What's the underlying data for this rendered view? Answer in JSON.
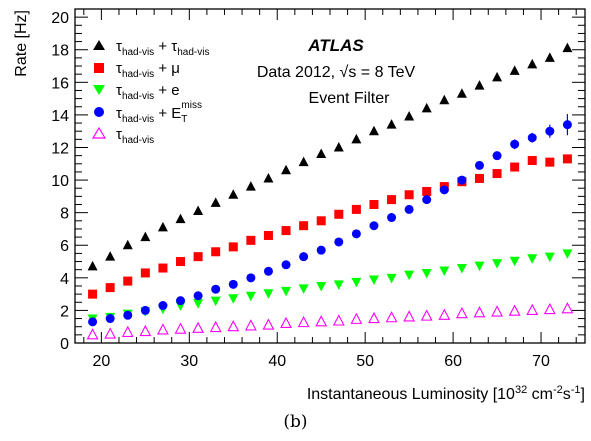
{
  "chart_data": {
    "type": "scatter",
    "title": "",
    "ylabel": "Rate [Hz]",
    "xlabel": "Instantaneous Luminosity [10^32 cm^-2 s^-1]",
    "xlim": [
      17.0,
      75.0
    ],
    "ylim": [
      0,
      20.5
    ],
    "x_ticks": [
      20,
      30,
      40,
      50,
      60,
      70
    ],
    "y_ticks": [
      0,
      2,
      4,
      6,
      8,
      10,
      12,
      14,
      16,
      18,
      20
    ],
    "grid": false,
    "legend_placement": "top-left",
    "annotations": {
      "experiment": "ATLAS",
      "dataset": "Data 2012, √s = 8 TeV",
      "trigger_level": "Event Filter"
    },
    "series": [
      {
        "name": "τhad-vis + τhad-vis",
        "marker": "triangle-filled",
        "color": "#000000",
        "x": [
          19,
          21,
          23,
          25,
          27,
          29,
          31,
          33,
          35,
          37,
          39,
          41,
          43,
          45,
          47,
          49,
          51,
          53,
          55,
          57,
          59,
          61,
          63,
          65,
          67,
          69,
          71,
          73
        ],
        "y": [
          4.7,
          5.3,
          6.0,
          6.5,
          7.1,
          7.6,
          8.1,
          8.6,
          9.1,
          9.6,
          10.1,
          10.6,
          11.1,
          11.6,
          12.0,
          12.5,
          13.0,
          13.4,
          13.9,
          14.4,
          14.9,
          15.3,
          15.8,
          16.3,
          16.7,
          17.1,
          17.5,
          18.1
        ]
      },
      {
        "name": "τhad-vis + μ",
        "marker": "square-filled",
        "color": "#ff0000",
        "x": [
          19,
          21,
          23,
          25,
          27,
          29,
          31,
          33,
          35,
          37,
          39,
          41,
          43,
          45,
          47,
          49,
          51,
          53,
          55,
          57,
          59,
          61,
          63,
          65,
          67,
          69,
          71,
          73
        ],
        "y": [
          3.0,
          3.4,
          3.8,
          4.3,
          4.6,
          5.0,
          5.3,
          5.6,
          5.9,
          6.3,
          6.6,
          6.9,
          7.2,
          7.5,
          7.9,
          8.2,
          8.5,
          8.8,
          9.1,
          9.3,
          9.6,
          9.9,
          10.1,
          10.4,
          10.8,
          11.2,
          11.1,
          11.3
        ]
      },
      {
        "name": "τhad-vis + e",
        "marker": "triangle-down-filled",
        "color": "#00ff00",
        "x": [
          19,
          21,
          23,
          25,
          27,
          29,
          31,
          33,
          35,
          37,
          39,
          41,
          43,
          45,
          47,
          49,
          51,
          53,
          55,
          57,
          59,
          61,
          63,
          65,
          67,
          69,
          71,
          73
        ],
        "y": [
          1.5,
          1.6,
          1.8,
          1.95,
          2.1,
          2.3,
          2.45,
          2.6,
          2.75,
          2.9,
          3.05,
          3.2,
          3.35,
          3.5,
          3.6,
          3.75,
          3.9,
          4.0,
          4.2,
          4.3,
          4.45,
          4.6,
          4.75,
          4.9,
          5.05,
          5.2,
          5.3,
          5.5
        ]
      },
      {
        "name": "τhad-vis + ETmiss",
        "marker": "circle-filled",
        "color": "#0000ff",
        "x": [
          19,
          21,
          23,
          25,
          27,
          29,
          31,
          33,
          35,
          37,
          39,
          41,
          43,
          45,
          47,
          49,
          51,
          53,
          55,
          57,
          59,
          61,
          63,
          65,
          67,
          69,
          71,
          73
        ],
        "y": [
          1.3,
          1.5,
          1.7,
          2.0,
          2.3,
          2.6,
          2.9,
          3.3,
          3.6,
          4.0,
          4.4,
          4.8,
          5.3,
          5.7,
          6.2,
          6.7,
          7.2,
          7.7,
          8.2,
          8.8,
          9.4,
          10.0,
          10.9,
          11.5,
          12.2,
          12.6,
          13.0,
          13.4
        ],
        "y_err": [
          0.1,
          0.1,
          0.1,
          0.1,
          0.1,
          0.1,
          0.1,
          0.1,
          0.1,
          0.1,
          0.1,
          0.1,
          0.1,
          0.1,
          0.1,
          0.1,
          0.1,
          0.15,
          0.15,
          0.15,
          0.2,
          0.2,
          0.2,
          0.25,
          0.3,
          0.3,
          0.4,
          0.65
        ]
      },
      {
        "name": "τhad-vis",
        "marker": "triangle-open",
        "color": "#ff00ff",
        "x": [
          19,
          21,
          23,
          25,
          27,
          29,
          31,
          33,
          35,
          37,
          39,
          41,
          43,
          45,
          47,
          49,
          51,
          53,
          55,
          57,
          59,
          61,
          63,
          65,
          67,
          69,
          71,
          73
        ],
        "y": [
          0.5,
          0.55,
          0.65,
          0.7,
          0.8,
          0.85,
          0.9,
          0.95,
          1.0,
          1.05,
          1.1,
          1.2,
          1.25,
          1.3,
          1.35,
          1.45,
          1.5,
          1.55,
          1.6,
          1.65,
          1.7,
          1.8,
          1.85,
          1.9,
          1.95,
          2.0,
          2.05,
          2.1
        ]
      }
    ]
  },
  "text": {
    "ylabel": "Rate [Hz]",
    "xlabel_main": "Instantaneous Luminosity [10",
    "xlabel_exp1": "32",
    "xlabel_mid": " cm",
    "xlabel_exp2": "-2",
    "xlabel_s": "s",
    "xlabel_exp3": "-1",
    "xlabel_end": "]",
    "atlas": "ATLAS",
    "dataset_prefix": "Data 2012,",
    "sqrt_s": "√s = 8 TeV",
    "trigger": "Event Filter",
    "caption": "(b)",
    "legend": {
      "tau": "τ",
      "sub": "had-vis",
      "plus_tau": " + τ",
      "plus_mu": " + μ",
      "plus_e": " + e",
      "plus_E": " + E",
      "E_sub": "T",
      "E_sup": "miss"
    }
  }
}
